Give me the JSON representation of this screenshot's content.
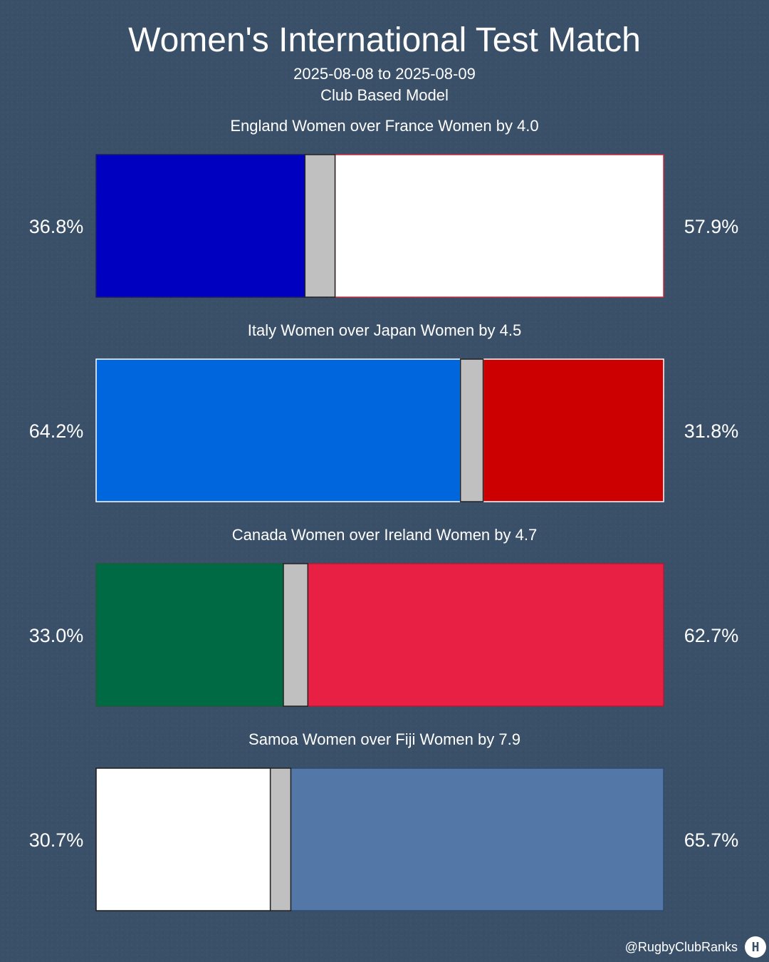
{
  "header": {
    "title": "Women's International Test Match",
    "dates": "2025-08-08 to 2025-08-09",
    "model": "Club Based Model"
  },
  "footer": {
    "handle": "@RugbyClubRanks",
    "logo_icon": "rugby-posts-icon"
  },
  "chart_data": {
    "type": "bar",
    "orientation": "horizontal-stacked",
    "description_fields": [
      "left_pct",
      "draw_pct",
      "right_pct"
    ],
    "matches": [
      {
        "headline": "England Women over France Women by 4.0",
        "left_label": "36.8%",
        "right_label": "57.9%",
        "left_pct": 36.8,
        "right_pct": 57.9,
        "draw_pct": 5.3,
        "left_color": "#0000c0",
        "right_color": "#ffffff",
        "left_stroke": "#1a1a6e",
        "right_stroke": "#c8283c"
      },
      {
        "headline": "Italy Women over Japan Women by 4.5",
        "left_label": "64.2%",
        "right_label": "31.8%",
        "left_pct": 64.2,
        "right_pct": 31.8,
        "draw_pct": 4.0,
        "left_color": "#0066dd",
        "right_color": "#cc0000",
        "left_stroke": "#ffffff",
        "right_stroke": "#ffffff"
      },
      {
        "headline": "Canada Women over Ireland Women by 4.7",
        "left_label": "33.0%",
        "right_label": "62.7%",
        "left_pct": 33.0,
        "right_pct": 62.7,
        "draw_pct": 4.3,
        "left_color": "#006a45",
        "right_color": "#e82043",
        "left_stroke": "#1e5a3c",
        "right_stroke": "#b01a34"
      },
      {
        "headline": "Samoa Women over Fiji Women by 7.9",
        "left_label": "30.7%",
        "right_label": "65.7%",
        "left_pct": 30.7,
        "right_pct": 65.7,
        "draw_pct": 3.6,
        "left_color": "#ffffff",
        "right_color": "#5378a8",
        "left_stroke": "#1a1a1a",
        "right_stroke": "#2e4a70"
      }
    ],
    "draw_color": "#c0c0c0",
    "draw_stroke": "#222222"
  }
}
